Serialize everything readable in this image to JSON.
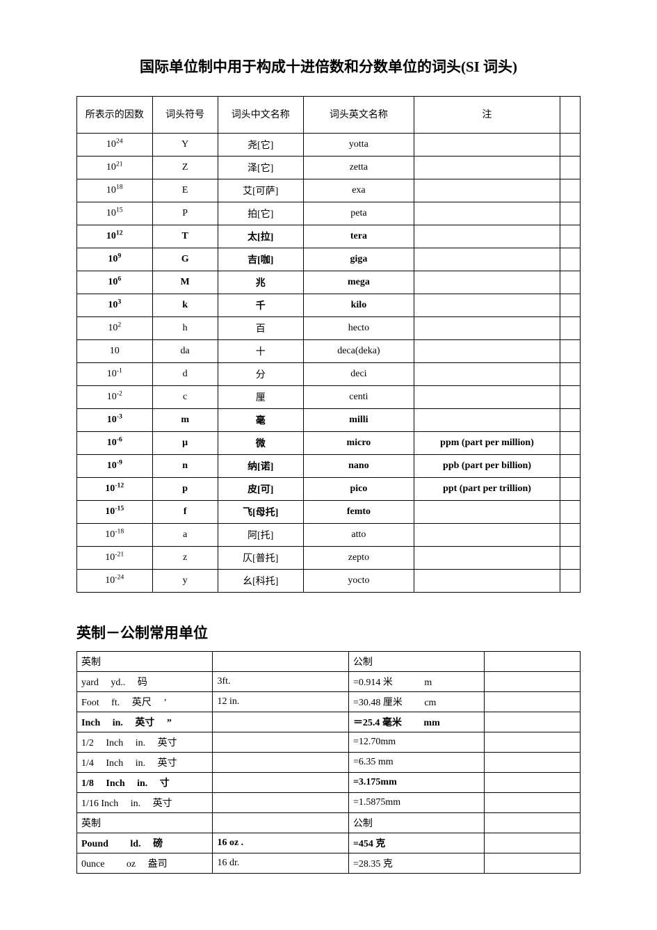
{
  "title1": "国际单位制中用于构成十进倍数和分数单位的词头(SI 词头)",
  "si": {
    "headers": [
      "所表示的因数",
      "词头符号",
      "词头中文名称",
      "词头英文名称",
      "注",
      ""
    ],
    "rows": [
      {
        "exp": "24",
        "sym": "Y",
        "cn": "尧[它]",
        "en": "yotta",
        "note": "",
        "bold": false
      },
      {
        "exp": "21",
        "sym": "Z",
        "cn": "泽[它]",
        "en": "zetta",
        "note": "",
        "bold": false
      },
      {
        "exp": "18",
        "sym": "E",
        "cn": "艾[可萨]",
        "en": "exa",
        "note": "",
        "bold": false
      },
      {
        "exp": "15",
        "sym": "P",
        "cn": "拍[它]",
        "en": "peta",
        "note": "",
        "bold": false
      },
      {
        "exp": "12",
        "sym": "T",
        "cn": "太[拉]",
        "en": "tera",
        "note": "",
        "bold": true
      },
      {
        "exp": "9",
        "sym": "G",
        "cn": "吉[咖]",
        "en": "giga",
        "note": "",
        "bold": true
      },
      {
        "exp": "6",
        "sym": "M",
        "cn": "兆",
        "en": "mega",
        "note": "",
        "bold": true
      },
      {
        "exp": "3",
        "sym": "k",
        "cn": "千",
        "en": "kilo",
        "note": "",
        "bold": true
      },
      {
        "exp": "2",
        "sym": "h",
        "cn": "百",
        "en": "hecto",
        "note": "",
        "bold": false
      },
      {
        "exp": "1",
        "sym": "da",
        "cn": "十",
        "en": "deca(deka)",
        "note": "",
        "bold": false,
        "plain10": true
      },
      {
        "exp": "-1",
        "sym": "d",
        "cn": "分",
        "en": "deci",
        "note": "",
        "bold": false
      },
      {
        "exp": "-2",
        "sym": "c",
        "cn": "厘",
        "en": "centi",
        "note": "",
        "bold": false
      },
      {
        "exp": "-3",
        "sym": "m",
        "cn": "毫",
        "en": "milli",
        "note": "",
        "bold": true
      },
      {
        "exp": "-6",
        "sym": "μ",
        "cn": "微",
        "en": "micro",
        "note": "ppm  (part  per  million)",
        "bold": true
      },
      {
        "exp": "-9",
        "sym": "n",
        "cn": "纳[诺]",
        "en": "nano",
        "note": "ppb  (part  per  billion)",
        "bold": true
      },
      {
        "exp": "-12",
        "sym": "p",
        "cn": "皮[可]",
        "en": "pico",
        "note": "ppt  (part  per  trillion)",
        "bold": true
      },
      {
        "exp": "-15",
        "sym": "f",
        "cn": "飞[母托]",
        "en": "femto",
        "note": "",
        "bold": true
      },
      {
        "exp": "-18",
        "sym": "a",
        "cn": "阿[托]",
        "en": "atto",
        "note": "",
        "bold": false
      },
      {
        "exp": "-21",
        "sym": "z",
        "cn": "仄[普托]",
        "en": "zepto",
        "note": "",
        "bold": false
      },
      {
        "exp": "-24",
        "sym": "y",
        "cn": "幺[科托]",
        "en": "yocto",
        "note": "",
        "bold": false
      }
    ]
  },
  "title2": "英制－公制常用单位",
  "conv": {
    "rows": [
      {
        "c1": "英制",
        "c2": "",
        "c3": "公制",
        "c4": "",
        "bold": false
      },
      {
        "c1": "yard　 yd..　 码",
        "c2": "3ft.",
        "c3": "=0.914 米　　　 m",
        "c4": "",
        "bold": false
      },
      {
        "c1": "Foot　 ft.　 英尺　 ’",
        "c2": "12  in.",
        "c3": "=30.48 厘米　　 cm",
        "c4": "",
        "bold": false
      },
      {
        "c1": "Inch　 in.　 英寸　 ”",
        "c2": "",
        "c3": "＝25.4 毫米　　 mm",
        "c4": "",
        "bold": true
      },
      {
        "c1": "1/2　 Inch　 in.　 英寸",
        "c2": "",
        "c3": "=12.70mm",
        "c4": "",
        "bold": false
      },
      {
        "c1": "1/4　 Inch　 in.　 英寸",
        "c2": "",
        "c3": "=6.35  mm",
        "c4": "",
        "bold": false
      },
      {
        "c1": "1/8　 Inch　 in.　 寸",
        "c2": "",
        "c3": "=3.175mm",
        "c4": "",
        "bold": true
      },
      {
        "c1": "1/16  Inch　 in.　 英寸",
        "c2": "",
        "c3": "=1.5875mm",
        "c4": "",
        "bold": false
      },
      {
        "c1": "英制",
        "c2": "",
        "c3": "公制",
        "c4": "",
        "bold": false
      },
      {
        "c1": "Pound　　 ld.　 磅",
        "c2": "16  oz .",
        "c3": "=454 克",
        "c4": "",
        "bold": true
      },
      {
        "c1": "0unce　　 oz　 盎司",
        "c2": "16 dr.",
        "c3": "=28.35 克",
        "c4": "",
        "bold": false
      }
    ]
  }
}
